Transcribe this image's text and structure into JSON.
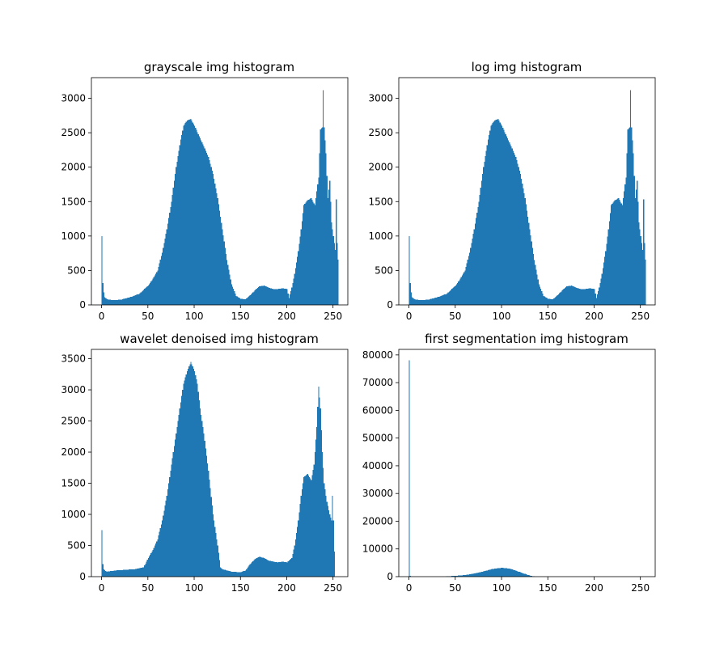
{
  "figure": {
    "bar_color": "#1f77b4"
  },
  "chart_data": [
    {
      "type": "bar",
      "title": "grayscale img histogram",
      "xlim": [
        -11,
        266
      ],
      "ylim": [
        0,
        3300
      ],
      "xticks": [
        0,
        50,
        100,
        150,
        200,
        250
      ],
      "yticks": [
        0,
        500,
        1000,
        1500,
        2000,
        2500,
        3000
      ],
      "bin_width": 1,
      "profile": [
        [
          0,
          1000
        ],
        [
          1,
          320
        ],
        [
          2,
          180
        ],
        [
          3,
          110
        ],
        [
          6,
          80
        ],
        [
          12,
          70
        ],
        [
          20,
          75
        ],
        [
          30,
          110
        ],
        [
          40,
          160
        ],
        [
          50,
          280
        ],
        [
          55,
          380
        ],
        [
          60,
          500
        ],
        [
          65,
          760
        ],
        [
          70,
          1100
        ],
        [
          75,
          1500
        ],
        [
          80,
          2000
        ],
        [
          85,
          2400
        ],
        [
          88,
          2600
        ],
        [
          92,
          2680
        ],
        [
          96,
          2700
        ],
        [
          100,
          2600
        ],
        [
          105,
          2450
        ],
        [
          110,
          2300
        ],
        [
          115,
          2150
        ],
        [
          120,
          1900
        ],
        [
          125,
          1550
        ],
        [
          130,
          1100
        ],
        [
          135,
          650
        ],
        [
          140,
          300
        ],
        [
          145,
          130
        ],
        [
          150,
          90
        ],
        [
          155,
          80
        ],
        [
          160,
          140
        ],
        [
          165,
          210
        ],
        [
          170,
          270
        ],
        [
          175,
          280
        ],
        [
          180,
          250
        ],
        [
          185,
          230
        ],
        [
          190,
          230
        ],
        [
          195,
          240
        ],
        [
          200,
          230
        ],
        [
          202,
          100
        ],
        [
          205,
          250
        ],
        [
          208,
          450
        ],
        [
          212,
          780
        ],
        [
          215,
          1100
        ],
        [
          218,
          1450
        ],
        [
          222,
          1520
        ],
        [
          226,
          1550
        ],
        [
          230,
          1450
        ],
        [
          234,
          1850
        ],
        [
          236,
          2550
        ],
        [
          238,
          2580
        ],
        [
          239,
          3120
        ],
        [
          240,
          2580
        ],
        [
          242,
          2200
        ],
        [
          244,
          1550
        ],
        [
          246,
          1800
        ],
        [
          248,
          1200
        ],
        [
          250,
          1000
        ],
        [
          252,
          800
        ],
        [
          253,
          1530
        ],
        [
          254,
          900
        ],
        [
          255,
          660
        ]
      ]
    },
    {
      "type": "bar",
      "title": "log img histogram",
      "xlim": [
        -11,
        266
      ],
      "ylim": [
        0,
        3300
      ],
      "xticks": [
        0,
        50,
        100,
        150,
        200,
        250
      ],
      "yticks": [
        0,
        500,
        1000,
        1500,
        2000,
        2500,
        3000
      ],
      "bin_width": 1,
      "profile": [
        [
          0,
          1000
        ],
        [
          1,
          320
        ],
        [
          2,
          180
        ],
        [
          3,
          110
        ],
        [
          6,
          80
        ],
        [
          12,
          70
        ],
        [
          20,
          75
        ],
        [
          30,
          110
        ],
        [
          40,
          160
        ],
        [
          50,
          280
        ],
        [
          55,
          380
        ],
        [
          60,
          500
        ],
        [
          65,
          760
        ],
        [
          70,
          1100
        ],
        [
          75,
          1500
        ],
        [
          80,
          2000
        ],
        [
          85,
          2400
        ],
        [
          88,
          2600
        ],
        [
          92,
          2680
        ],
        [
          96,
          2700
        ],
        [
          100,
          2600
        ],
        [
          105,
          2450
        ],
        [
          110,
          2300
        ],
        [
          115,
          2150
        ],
        [
          120,
          1900
        ],
        [
          125,
          1550
        ],
        [
          130,
          1100
        ],
        [
          135,
          650
        ],
        [
          140,
          300
        ],
        [
          145,
          130
        ],
        [
          150,
          90
        ],
        [
          155,
          80
        ],
        [
          160,
          140
        ],
        [
          165,
          210
        ],
        [
          170,
          270
        ],
        [
          175,
          280
        ],
        [
          180,
          250
        ],
        [
          185,
          230
        ],
        [
          190,
          230
        ],
        [
          195,
          240
        ],
        [
          200,
          230
        ],
        [
          202,
          100
        ],
        [
          205,
          250
        ],
        [
          208,
          450
        ],
        [
          212,
          780
        ],
        [
          215,
          1100
        ],
        [
          218,
          1450
        ],
        [
          222,
          1520
        ],
        [
          226,
          1550
        ],
        [
          230,
          1450
        ],
        [
          234,
          1850
        ],
        [
          236,
          2550
        ],
        [
          238,
          2580
        ],
        [
          239,
          3120
        ],
        [
          240,
          2580
        ],
        [
          242,
          2200
        ],
        [
          244,
          1550
        ],
        [
          246,
          1800
        ],
        [
          248,
          1200
        ],
        [
          250,
          1000
        ],
        [
          252,
          800
        ],
        [
          253,
          1530
        ],
        [
          254,
          900
        ],
        [
          255,
          660
        ]
      ]
    },
    {
      "type": "bar",
      "title": "wavelet denoised img histogram",
      "xlim": [
        -11,
        266
      ],
      "ylim": [
        0,
        3650
      ],
      "xticks": [
        0,
        50,
        100,
        150,
        200,
        250
      ],
      "yticks": [
        0,
        500,
        1000,
        1500,
        2000,
        2500,
        3000,
        3500
      ],
      "bin_width": 1,
      "profile": [
        [
          0,
          750
        ],
        [
          1,
          200
        ],
        [
          2,
          120
        ],
        [
          5,
          80
        ],
        [
          15,
          100
        ],
        [
          25,
          110
        ],
        [
          35,
          120
        ],
        [
          45,
          150
        ],
        [
          50,
          300
        ],
        [
          55,
          430
        ],
        [
          60,
          600
        ],
        [
          65,
          900
        ],
        [
          70,
          1300
        ],
        [
          75,
          1800
        ],
        [
          80,
          2300
        ],
        [
          85,
          2800
        ],
        [
          88,
          3100
        ],
        [
          92,
          3300
        ],
        [
          96,
          3450
        ],
        [
          100,
          3300
        ],
        [
          103,
          3100
        ],
        [
          106,
          2700
        ],
        [
          110,
          2300
        ],
        [
          115,
          1700
        ],
        [
          120,
          1000
        ],
        [
          125,
          500
        ],
        [
          128,
          150
        ],
        [
          130,
          120
        ],
        [
          140,
          80
        ],
        [
          150,
          70
        ],
        [
          155,
          100
        ],
        [
          160,
          200
        ],
        [
          165,
          280
        ],
        [
          170,
          320
        ],
        [
          175,
          300
        ],
        [
          180,
          260
        ],
        [
          185,
          240
        ],
        [
          190,
          230
        ],
        [
          195,
          240
        ],
        [
          200,
          230
        ],
        [
          205,
          300
        ],
        [
          208,
          500
        ],
        [
          212,
          900
        ],
        [
          215,
          1300
        ],
        [
          218,
          1600
        ],
        [
          222,
          1650
        ],
        [
          226,
          1550
        ],
        [
          229,
          1800
        ],
        [
          232,
          2400
        ],
        [
          234,
          3050
        ],
        [
          236,
          2700
        ],
        [
          238,
          2000
        ],
        [
          240,
          1500
        ],
        [
          243,
          1200
        ],
        [
          246,
          1000
        ],
        [
          248,
          900
        ],
        [
          249,
          1300
        ],
        [
          250,
          900
        ],
        [
          251,
          400
        ],
        [
          252,
          0
        ]
      ]
    },
    {
      "type": "bar",
      "title": "first segmentation img histogram",
      "xlim": [
        -11,
        266
      ],
      "ylim": [
        0,
        82000
      ],
      "xticks": [
        0,
        50,
        100,
        150,
        200,
        250
      ],
      "yticks": [
        0,
        10000,
        20000,
        30000,
        40000,
        50000,
        60000,
        70000,
        80000
      ],
      "bin_width": 1,
      "profile": [
        [
          0,
          78000
        ],
        [
          1,
          300
        ],
        [
          2,
          0
        ],
        [
          39,
          0
        ],
        [
          40,
          100
        ],
        [
          50,
          300
        ],
        [
          60,
          600
        ],
        [
          70,
          1100
        ],
        [
          80,
          1900
        ],
        [
          90,
          2800
        ],
        [
          100,
          3200
        ],
        [
          108,
          2900
        ],
        [
          115,
          2200
        ],
        [
          122,
          1300
        ],
        [
          130,
          400
        ],
        [
          135,
          80
        ],
        [
          140,
          0
        ],
        [
          255,
          0
        ]
      ]
    }
  ]
}
